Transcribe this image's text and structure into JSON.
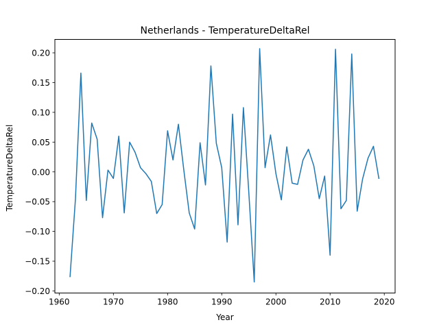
{
  "chart_data": {
    "type": "line",
    "title": "Netherlands - TemperatureDeltaRel",
    "xlabel": "Year",
    "ylabel": "TemperatureDeltaRel",
    "xlim": [
      1959.2,
      2022.0
    ],
    "ylim": [
      -0.2035,
      0.2225
    ],
    "xticks": [
      1960,
      1970,
      1980,
      1990,
      2000,
      2010,
      2020
    ],
    "xtick_labels": [
      "1960",
      "1970",
      "1980",
      "1990",
      "2000",
      "2010",
      "2020"
    ],
    "yticks": [
      -0.2,
      -0.15,
      -0.1,
      -0.05,
      0.0,
      0.05,
      0.1,
      0.15,
      0.2
    ],
    "ytick_labels": [
      "−0.20",
      "−0.15",
      "−0.10",
      "−0.05",
      "0.00",
      "0.05",
      "0.10",
      "0.15",
      "0.20"
    ],
    "grid": false,
    "colors": {
      "series": "#1f77b4"
    },
    "series": [
      {
        "x": [
          1962,
          1963,
          1964,
          1965,
          1966,
          1967,
          1968,
          1969,
          1970,
          1971,
          1972,
          1973,
          1974,
          1975,
          1976,
          1977,
          1978,
          1979,
          1980,
          1981,
          1982,
          1983,
          1984,
          1985,
          1986,
          1987,
          1988,
          1989,
          1990,
          1991,
          1992,
          1993,
          1994,
          1995,
          1996,
          1997,
          1998,
          1999,
          2000,
          2001,
          2002,
          2003,
          2004,
          2005,
          2006,
          2007,
          2008,
          2009,
          2010,
          2011,
          2012,
          2013,
          2014,
          2015,
          2016,
          2017,
          2018,
          2019
        ],
        "values": [
          -0.176,
          -0.045,
          0.166,
          -0.048,
          0.082,
          0.055,
          -0.077,
          0.003,
          -0.011,
          0.06,
          -0.069,
          0.05,
          0.033,
          0.007,
          -0.003,
          -0.016,
          -0.07,
          -0.055,
          0.069,
          0.02,
          0.08,
          0.003,
          -0.069,
          -0.096,
          0.049,
          -0.022,
          0.178,
          0.048,
          0.007,
          -0.118,
          0.097,
          -0.089,
          0.108,
          -0.035,
          -0.185,
          0.207,
          0.007,
          0.062,
          -0.003,
          -0.047,
          0.042,
          -0.019,
          -0.021,
          0.02,
          0.038,
          0.01,
          -0.045,
          -0.007,
          -0.14,
          0.206,
          -0.062,
          -0.048,
          0.198,
          -0.066,
          -0.012,
          0.023,
          0.043,
          -0.011
        ]
      }
    ]
  }
}
